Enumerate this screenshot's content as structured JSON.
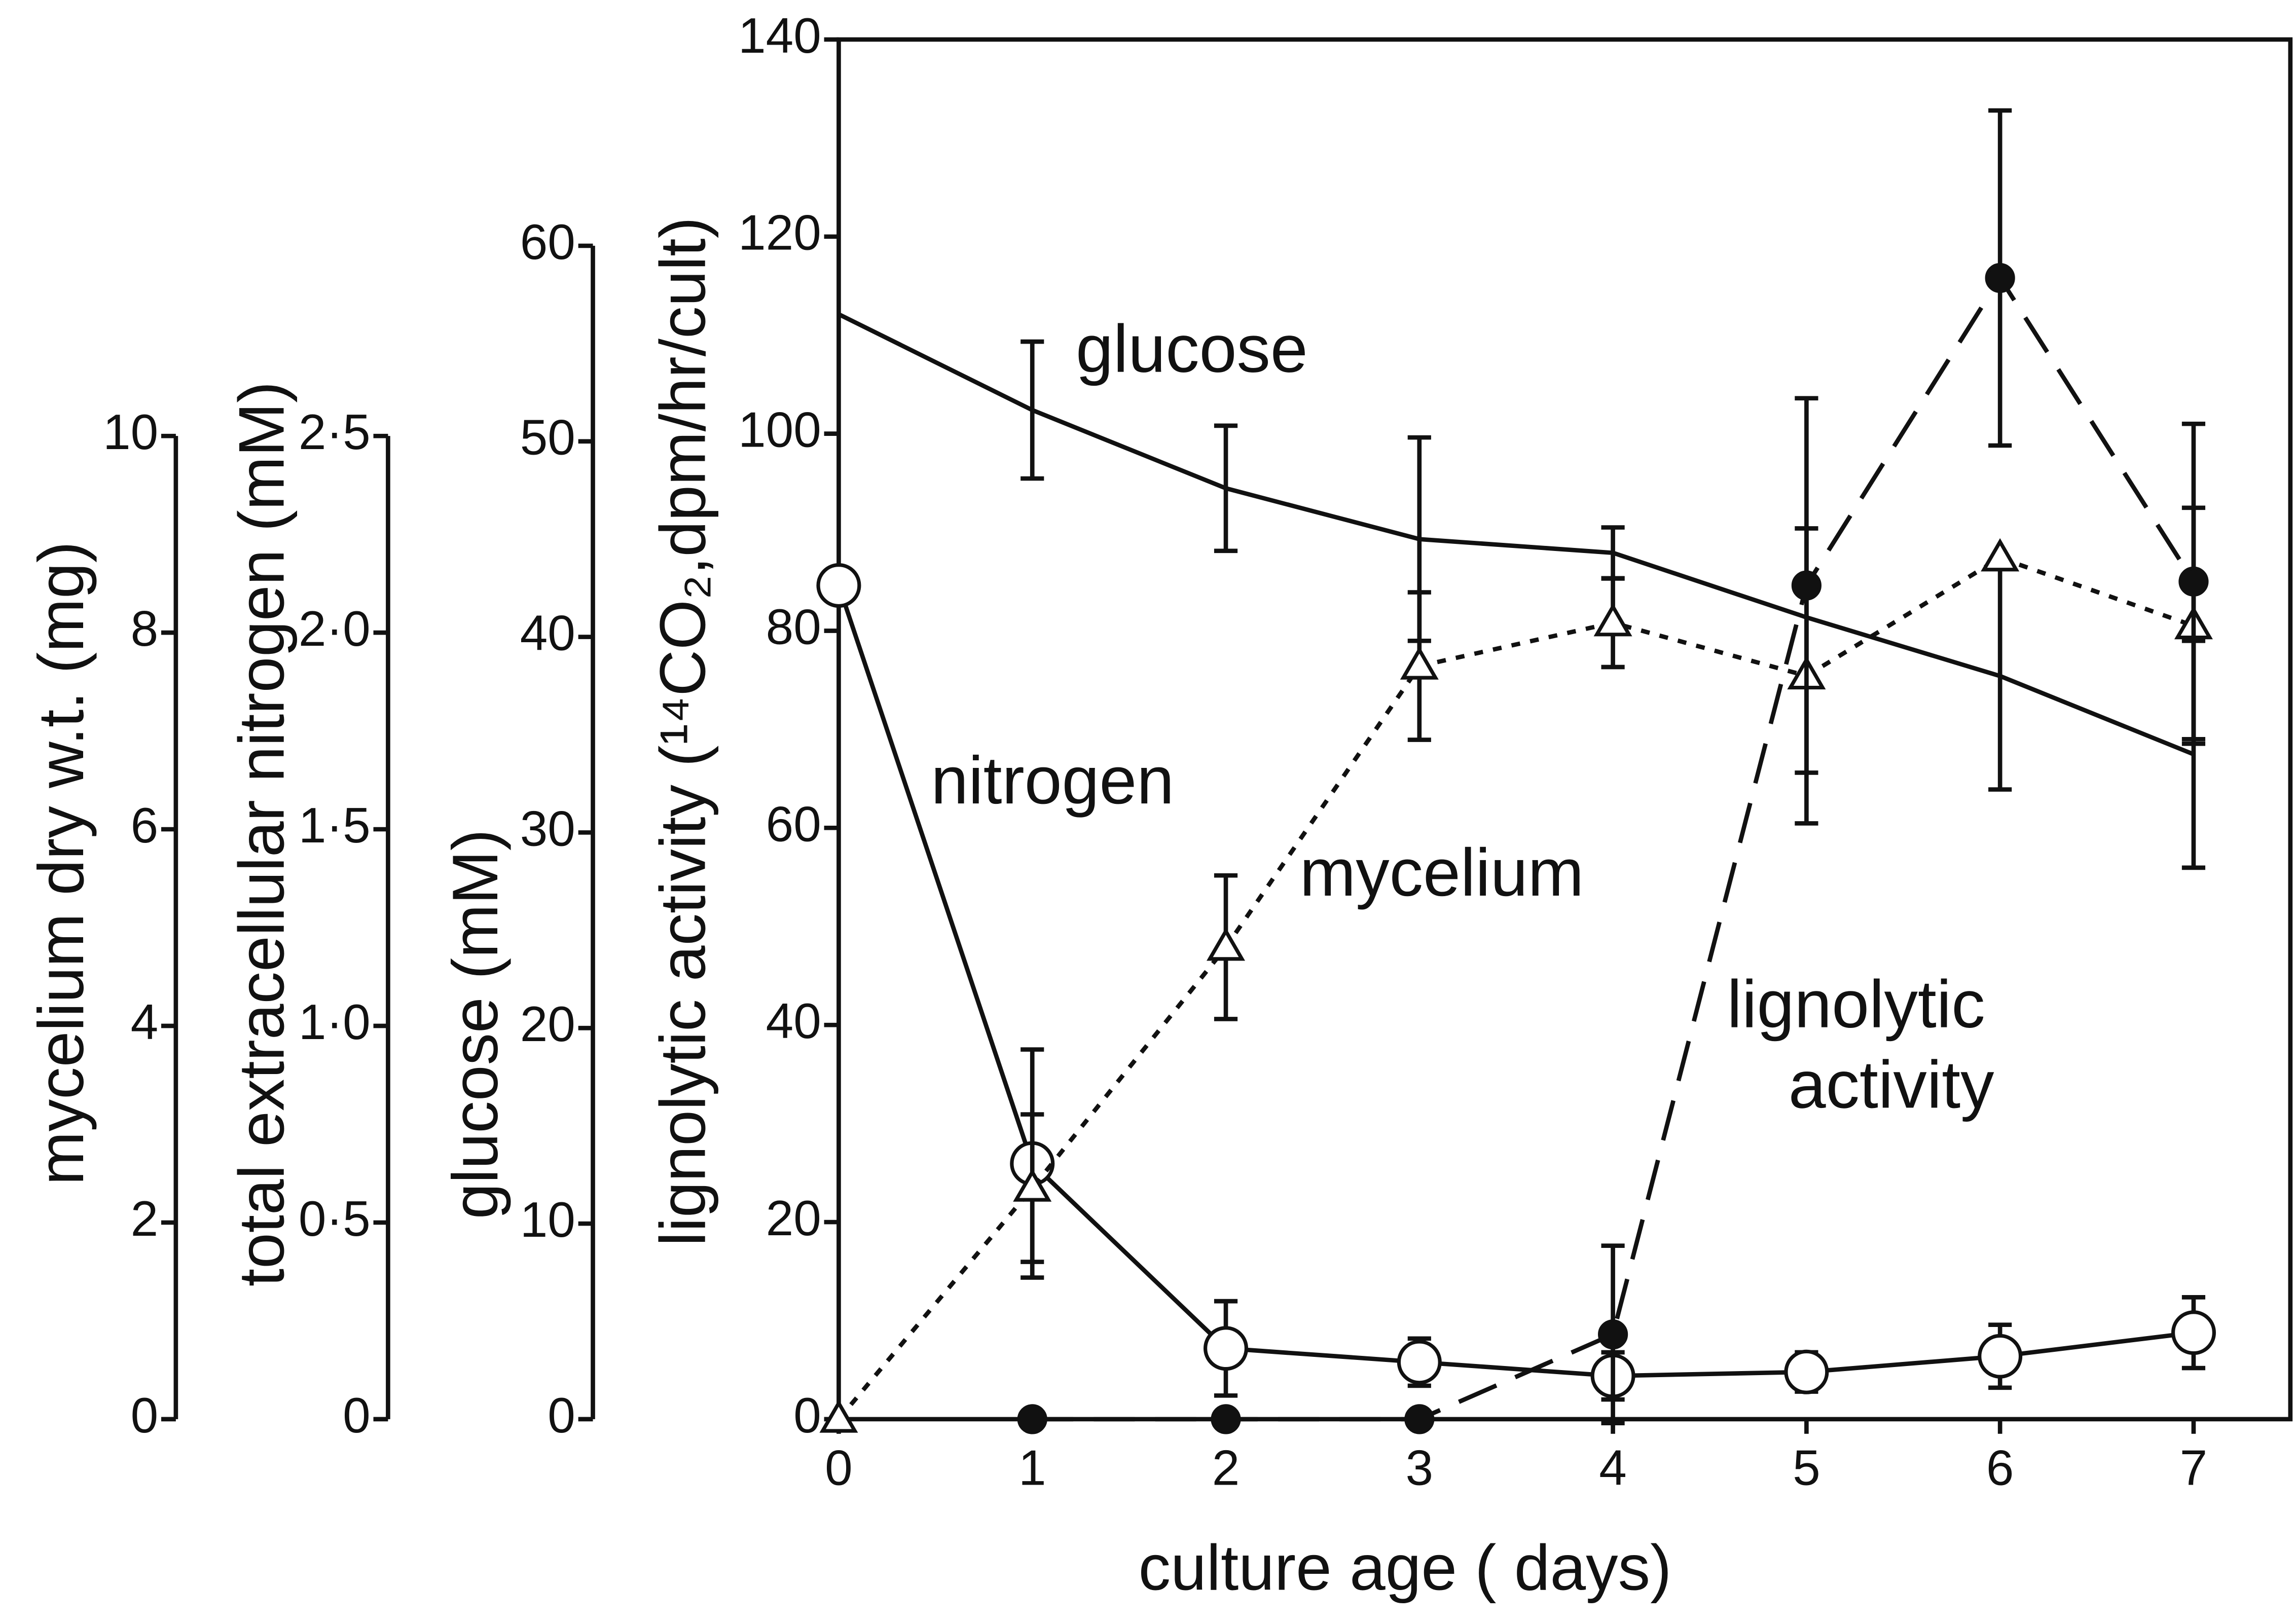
{
  "chart_data": {
    "type": "line",
    "xlabel": "culture age ( days)",
    "xlim": [
      0,
      7.5
    ],
    "xticks": [
      0,
      1,
      2,
      3,
      4,
      5,
      6,
      7
    ],
    "ylabel": "lignolytic activity (¹⁴CO₂,dpm/hr/cult)",
    "ylim": [
      0,
      140
    ],
    "yticks": [
      0,
      20,
      40,
      60,
      80,
      100,
      120,
      140
    ],
    "y2label": "glucose (mM)",
    "y2lim": [
      0,
      60
    ],
    "y2ticks": [
      0,
      10,
      20,
      30,
      40,
      50,
      60
    ],
    "y3label": "total extracellular nitrogen (mM)",
    "y3lim": [
      0,
      2.5
    ],
    "y3ticks": [
      0,
      {
        "value": 0.5,
        "label": "0·5"
      },
      {
        "value": 1.0,
        "label": "1·0"
      },
      {
        "value": 1.5,
        "label": "1·5"
      },
      {
        "value": 2.0,
        "label": "2·0"
      },
      {
        "value": 2.5,
        "label": "2·5"
      }
    ],
    "y4label": "mycelium dry w.t. (mg)",
    "y4lim": [
      0,
      10
    ],
    "y4ticks": [
      0,
      2,
      4,
      6,
      8,
      10
    ],
    "x": [
      0,
      1,
      2,
      3,
      4,
      5,
      6,
      7
    ],
    "series": [
      {
        "name": "glucose",
        "axis": "y2",
        "color": "#111111",
        "line": "solid",
        "marker": "none",
        "values": [
          56.5,
          51.6,
          47.6,
          45,
          44.3,
          41,
          38,
          34
        ],
        "errors": [
          null,
          3.5,
          3.2,
          5.2,
          1.3,
          null,
          5.8,
          5.8
        ]
      },
      {
        "name": "nitrogen",
        "axis": "y3",
        "color": "#111111",
        "line": "solid",
        "marker": "open-circle",
        "values": [
          2.12,
          0.65,
          0.18,
          0.145,
          0.11,
          0.12,
          0.16,
          0.22
        ],
        "errors": [
          null,
          0.29,
          0.12,
          0.06,
          0.06,
          0.05,
          0.08,
          0.09
        ]
      },
      {
        "name": "mycelium",
        "axis": "y4",
        "color": "#111111",
        "line": "dotted",
        "marker": "open-triangle",
        "values": [
          0,
          2.35,
          4.8,
          7.66,
          8.1,
          7.56,
          8.76,
          8.07
        ],
        "errors": [
          null,
          0.75,
          0.73,
          0.75,
          0.45,
          1.5,
          null,
          1.2
        ]
      },
      {
        "name": "lignolytic activity",
        "axis": "y",
        "color": "#111111",
        "line": "dashed",
        "marker": "filled-circle",
        "values": [
          null,
          0,
          0,
          0,
          8.6,
          84.6,
          115.8,
          85
        ],
        "errors": [
          null,
          null,
          null,
          null,
          9,
          19,
          17,
          16
        ]
      }
    ]
  }
}
